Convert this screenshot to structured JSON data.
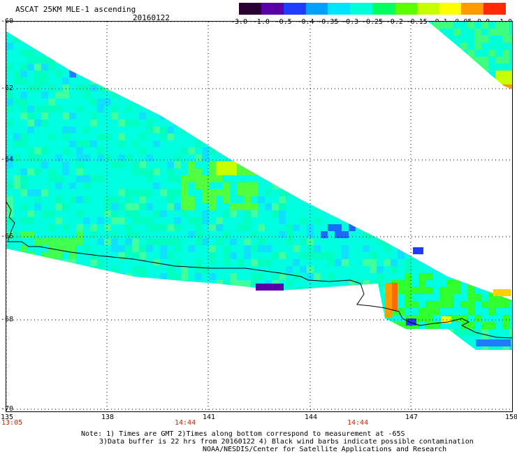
{
  "header": {
    "title": "ASCAT 25KM MLE-1 ascending",
    "date": "20160122"
  },
  "colorbar": {
    "labels": [
      "-3.0",
      "-1.0",
      "-0.5",
      "-0.4",
      "-0.35",
      "-0.3",
      "-0.25",
      "-0.2",
      "-0.15",
      "-0.1",
      "-0.05",
      "0.0",
      "1.0"
    ],
    "colors": [
      "#2a0033",
      "#5a00a8",
      "#1f3cff",
      "#00a0ff",
      "#00e5ff",
      "#00ffd8",
      "#00ff60",
      "#5cff00",
      "#c8ff00",
      "#ffff00",
      "#ff9a00",
      "#ff2a00"
    ]
  },
  "map": {
    "lat_labels": [
      "-60",
      "-62",
      "-64",
      "-66",
      "-68",
      "-70"
    ],
    "lon_labels": [
      "135",
      "138",
      "141",
      "144",
      "147",
      "150"
    ],
    "time_labels": [
      "13:05",
      "14:44",
      "14:44"
    ],
    "coastline_color": "#000000"
  },
  "notes": {
    "line1": "Note: 1) Times are GMT 2)Times along bottom correspond to measurement at -65S",
    "line2": "3)Data buffer is 22 hrs from 20160122 4) Black wind barbs indicate possible contamination",
    "line3": "NOAA/NESDIS/Center for Satellite Applications and Research"
  }
}
